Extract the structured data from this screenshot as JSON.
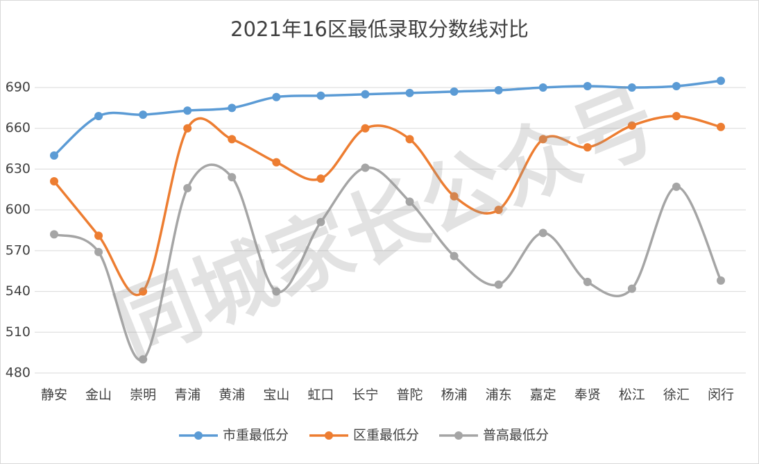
{
  "chart_data": {
    "type": "line",
    "title": "2021年16区最低录取分数线对比",
    "categories": [
      "静安",
      "金山",
      "崇明",
      "青浦",
      "黄浦",
      "宝山",
      "虹口",
      "长宁",
      "普陀",
      "杨浦",
      "浦东",
      "嘉定",
      "奉贤",
      "松江",
      "徐汇",
      "闵行"
    ],
    "series": [
      {
        "name": "市重最低分",
        "color": "#5b9bd5",
        "values": [
          640,
          669,
          670,
          673,
          675,
          683,
          684,
          685,
          686,
          687,
          688,
          690,
          691,
          690,
          691,
          695
        ]
      },
      {
        "name": "区重最低分",
        "color": "#ed7d31",
        "values": [
          621,
          581,
          540,
          660,
          652,
          635,
          623,
          660,
          652,
          610,
          600,
          652,
          646,
          662,
          669,
          661
        ]
      },
      {
        "name": "普高最低分",
        "color": "#a5a5a5",
        "values": [
          582,
          569,
          490,
          616,
          624,
          540,
          591,
          631,
          606,
          566,
          545,
          583,
          547,
          542,
          617,
          548
        ]
      }
    ],
    "ylim": [
      480,
      690
    ],
    "yticks": [
      480,
      510,
      540,
      570,
      600,
      630,
      660,
      690
    ],
    "grid": true,
    "legend": "bottom",
    "smooth": true,
    "watermark": "同城家长公众号"
  }
}
